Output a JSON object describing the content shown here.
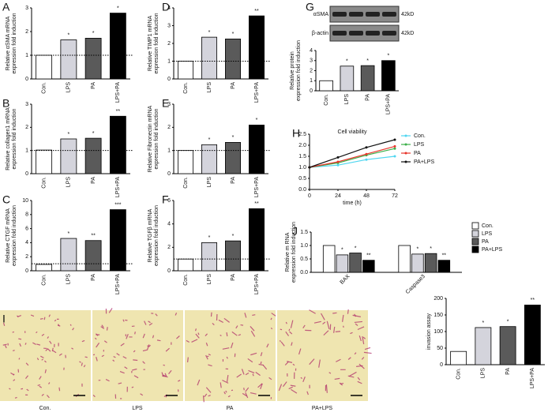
{
  "chart_data": [
    {
      "type": "bar",
      "panel": "A",
      "ylabel": [
        "Relative αSMA mRNA",
        "expression fold induction"
      ],
      "categories": [
        "Con.",
        "LPS",
        "PA",
        "LPS+PA"
      ],
      "values": [
        1.0,
        1.65,
        1.72,
        2.78
      ],
      "significance": [
        null,
        "*",
        "*",
        "*"
      ],
      "colors": [
        "#ffffff",
        "#d4d4dc",
        "#5a5a5a",
        "#000000"
      ],
      "ylim": [
        0,
        3
      ],
      "yticks": [
        0,
        1,
        2,
        3
      ],
      "reference_line": 1
    },
    {
      "type": "bar",
      "panel": "B",
      "ylabel": [
        "Relative collagen1 mRNA",
        "expression fold induction"
      ],
      "categories": [
        "Con.",
        "LPS",
        "PA",
        "LPS+PA"
      ],
      "values": [
        1.02,
        1.5,
        1.53,
        2.48
      ],
      "significance": [
        null,
        "*",
        "*",
        "**"
      ],
      "colors": [
        "#ffffff",
        "#d4d4dc",
        "#5a5a5a",
        "#000000"
      ],
      "ylim": [
        0,
        3
      ],
      "yticks": [
        0,
        1,
        2,
        3
      ],
      "reference_line": 1
    },
    {
      "type": "bar",
      "panel": "C",
      "ylabel": [
        "Relative CTGF mRNA",
        "expression fold induction"
      ],
      "categories": [
        "Con.",
        "LPS",
        "PA",
        "LPS+PA"
      ],
      "values": [
        0.9,
        4.6,
        4.3,
        8.7
      ],
      "significance": [
        null,
        "*",
        "**",
        "***"
      ],
      "colors": [
        "#ffffff",
        "#d4d4dc",
        "#5a5a5a",
        "#000000"
      ],
      "ylim": [
        0,
        10
      ],
      "yticks": [
        0,
        2,
        4,
        6,
        8,
        10
      ],
      "reference_line": 1
    },
    {
      "type": "bar",
      "panel": "D",
      "ylabel": [
        "Relative TIMP1 mRNA",
        "expression fold induction"
      ],
      "categories": [
        "Con.",
        "LPS",
        "PA",
        "LPS+PA"
      ],
      "values": [
        1.0,
        2.35,
        2.25,
        3.55
      ],
      "significance": [
        null,
        "*",
        "*",
        "**"
      ],
      "colors": [
        "#ffffff",
        "#d4d4dc",
        "#5a5a5a",
        "#000000"
      ],
      "ylim": [
        0,
        4
      ],
      "yticks": [
        0,
        1,
        2,
        3,
        4
      ],
      "reference_line": 1
    },
    {
      "type": "bar",
      "panel": "E",
      "ylabel": [
        "Relative Fibronectin mRNA",
        "expression fold induction"
      ],
      "categories": [
        "Con.",
        "LPS",
        "PA",
        "LPS+PA"
      ],
      "values": [
        1.0,
        1.25,
        1.35,
        2.1
      ],
      "significance": [
        null,
        "*",
        "*",
        "*"
      ],
      "colors": [
        "#ffffff",
        "#d4d4dc",
        "#5a5a5a",
        "#000000"
      ],
      "ylim": [
        0,
        3
      ],
      "yticks": [
        0,
        1,
        2,
        3
      ],
      "reference_line": 1
    },
    {
      "type": "bar",
      "panel": "F",
      "ylabel": [
        "Relative TGFβ mRNA",
        "expression fold induction"
      ],
      "categories": [
        "Con.",
        "LPS",
        "PA",
        "LPS+PA"
      ],
      "values": [
        1.0,
        2.4,
        2.55,
        5.3
      ],
      "significance": [
        null,
        "*",
        "*",
        "**"
      ],
      "colors": [
        "#ffffff",
        "#d4d4dc",
        "#5a5a5a",
        "#000000"
      ],
      "ylim": [
        0,
        6
      ],
      "yticks": [
        0,
        2,
        4,
        6
      ],
      "reference_line": 1
    },
    {
      "type": "bar",
      "panel": "G",
      "blot_labels": [
        "αSMA",
        "β-actin"
      ],
      "blot_sizes": [
        "42kD",
        "42kD"
      ],
      "ylabel": [
        "Relative protein",
        "expression fold induction"
      ],
      "categories": [
        "Con.",
        "LPS",
        "PA",
        "LPS+PA"
      ],
      "values": [
        1.0,
        2.45,
        2.5,
        3.0
      ],
      "significance": [
        null,
        "*",
        "*",
        "*"
      ],
      "colors": [
        "#ffffff",
        "#d4d4dc",
        "#5a5a5a",
        "#000000"
      ],
      "ylim": [
        0,
        4
      ],
      "yticks": [
        0,
        1,
        2,
        3,
        4
      ]
    },
    {
      "type": "line",
      "panel": "H",
      "title": "Cell viability",
      "xlabel": "time (h)",
      "x": [
        0,
        24,
        48,
        72
      ],
      "xlim": [
        0,
        72
      ],
      "xticks": [
        0,
        24,
        48,
        72
      ],
      "ylim": [
        0,
        2.5
      ],
      "yticks": [
        {
          "value": 0,
          "label": "0.0"
        },
        {
          "value": 0.5,
          "label": "0.5"
        },
        {
          "value": 1,
          "label": "1.0"
        },
        {
          "value": 1.5,
          "label": "1.5"
        },
        {
          "value": 2,
          "label": "2.0"
        },
        {
          "value": 2.5,
          "label": "2.5"
        }
      ],
      "series": [
        {
          "name": "Con.",
          "color": "#4fd6f0",
          "values": [
            1.0,
            1.1,
            1.35,
            1.5
          ]
        },
        {
          "name": "LPS",
          "color": "#3cb04a",
          "values": [
            1.0,
            1.2,
            1.55,
            1.85
          ]
        },
        {
          "name": "PA",
          "color": "#e8352b",
          "values": [
            1.0,
            1.25,
            1.6,
            1.95
          ]
        },
        {
          "name": "PA+LPS",
          "color": "#111111",
          "values": [
            1.0,
            1.45,
            1.9,
            2.25
          ]
        }
      ]
    },
    {
      "type": "grouped_bar",
      "panel": "J",
      "ylabel": [
        "Relative m RNA",
        "expression fold induction"
      ],
      "categories": [
        "BAX",
        "Caspase3"
      ],
      "ylim": [
        0,
        1.5
      ],
      "yticks": [
        {
          "value": 0,
          "label": "0.0"
        },
        {
          "value": 0.5,
          "label": "0.5"
        },
        {
          "value": 1,
          "label": "1.0"
        },
        {
          "value": 1.5,
          "label": "1.5"
        }
      ],
      "series": [
        {
          "name": "Con.",
          "color": "#ffffff",
          "values": [
            1.0,
            1.0
          ]
        },
        {
          "name": "LPS",
          "color": "#d4d4dc",
          "values": [
            0.65,
            0.68
          ],
          "significance": [
            "*",
            "*"
          ]
        },
        {
          "name": "PA",
          "color": "#5a5a5a",
          "values": [
            0.72,
            0.7
          ],
          "significance": [
            "*",
            "*"
          ]
        },
        {
          "name": "PA+LPS",
          "color": "#000000",
          "values": [
            0.45,
            0.45
          ],
          "significance": [
            "**",
            "**"
          ]
        }
      ]
    },
    {
      "type": "bar",
      "panel": "I",
      "images": [
        "Con.",
        "LPS",
        "PA",
        "PA+LPS"
      ],
      "ylabel": [
        "invasion assay"
      ],
      "categories": [
        "Con.",
        "LPS",
        "PA",
        "LPS+PA"
      ],
      "values": [
        40,
        112,
        115,
        180
      ],
      "significance": [
        null,
        "*",
        "*",
        "**"
      ],
      "colors": [
        "#ffffff",
        "#d4d4dc",
        "#5a5a5a",
        "#000000"
      ],
      "ylim": [
        0,
        200
      ],
      "yticks": [
        0,
        50,
        100,
        150,
        200
      ]
    }
  ]
}
